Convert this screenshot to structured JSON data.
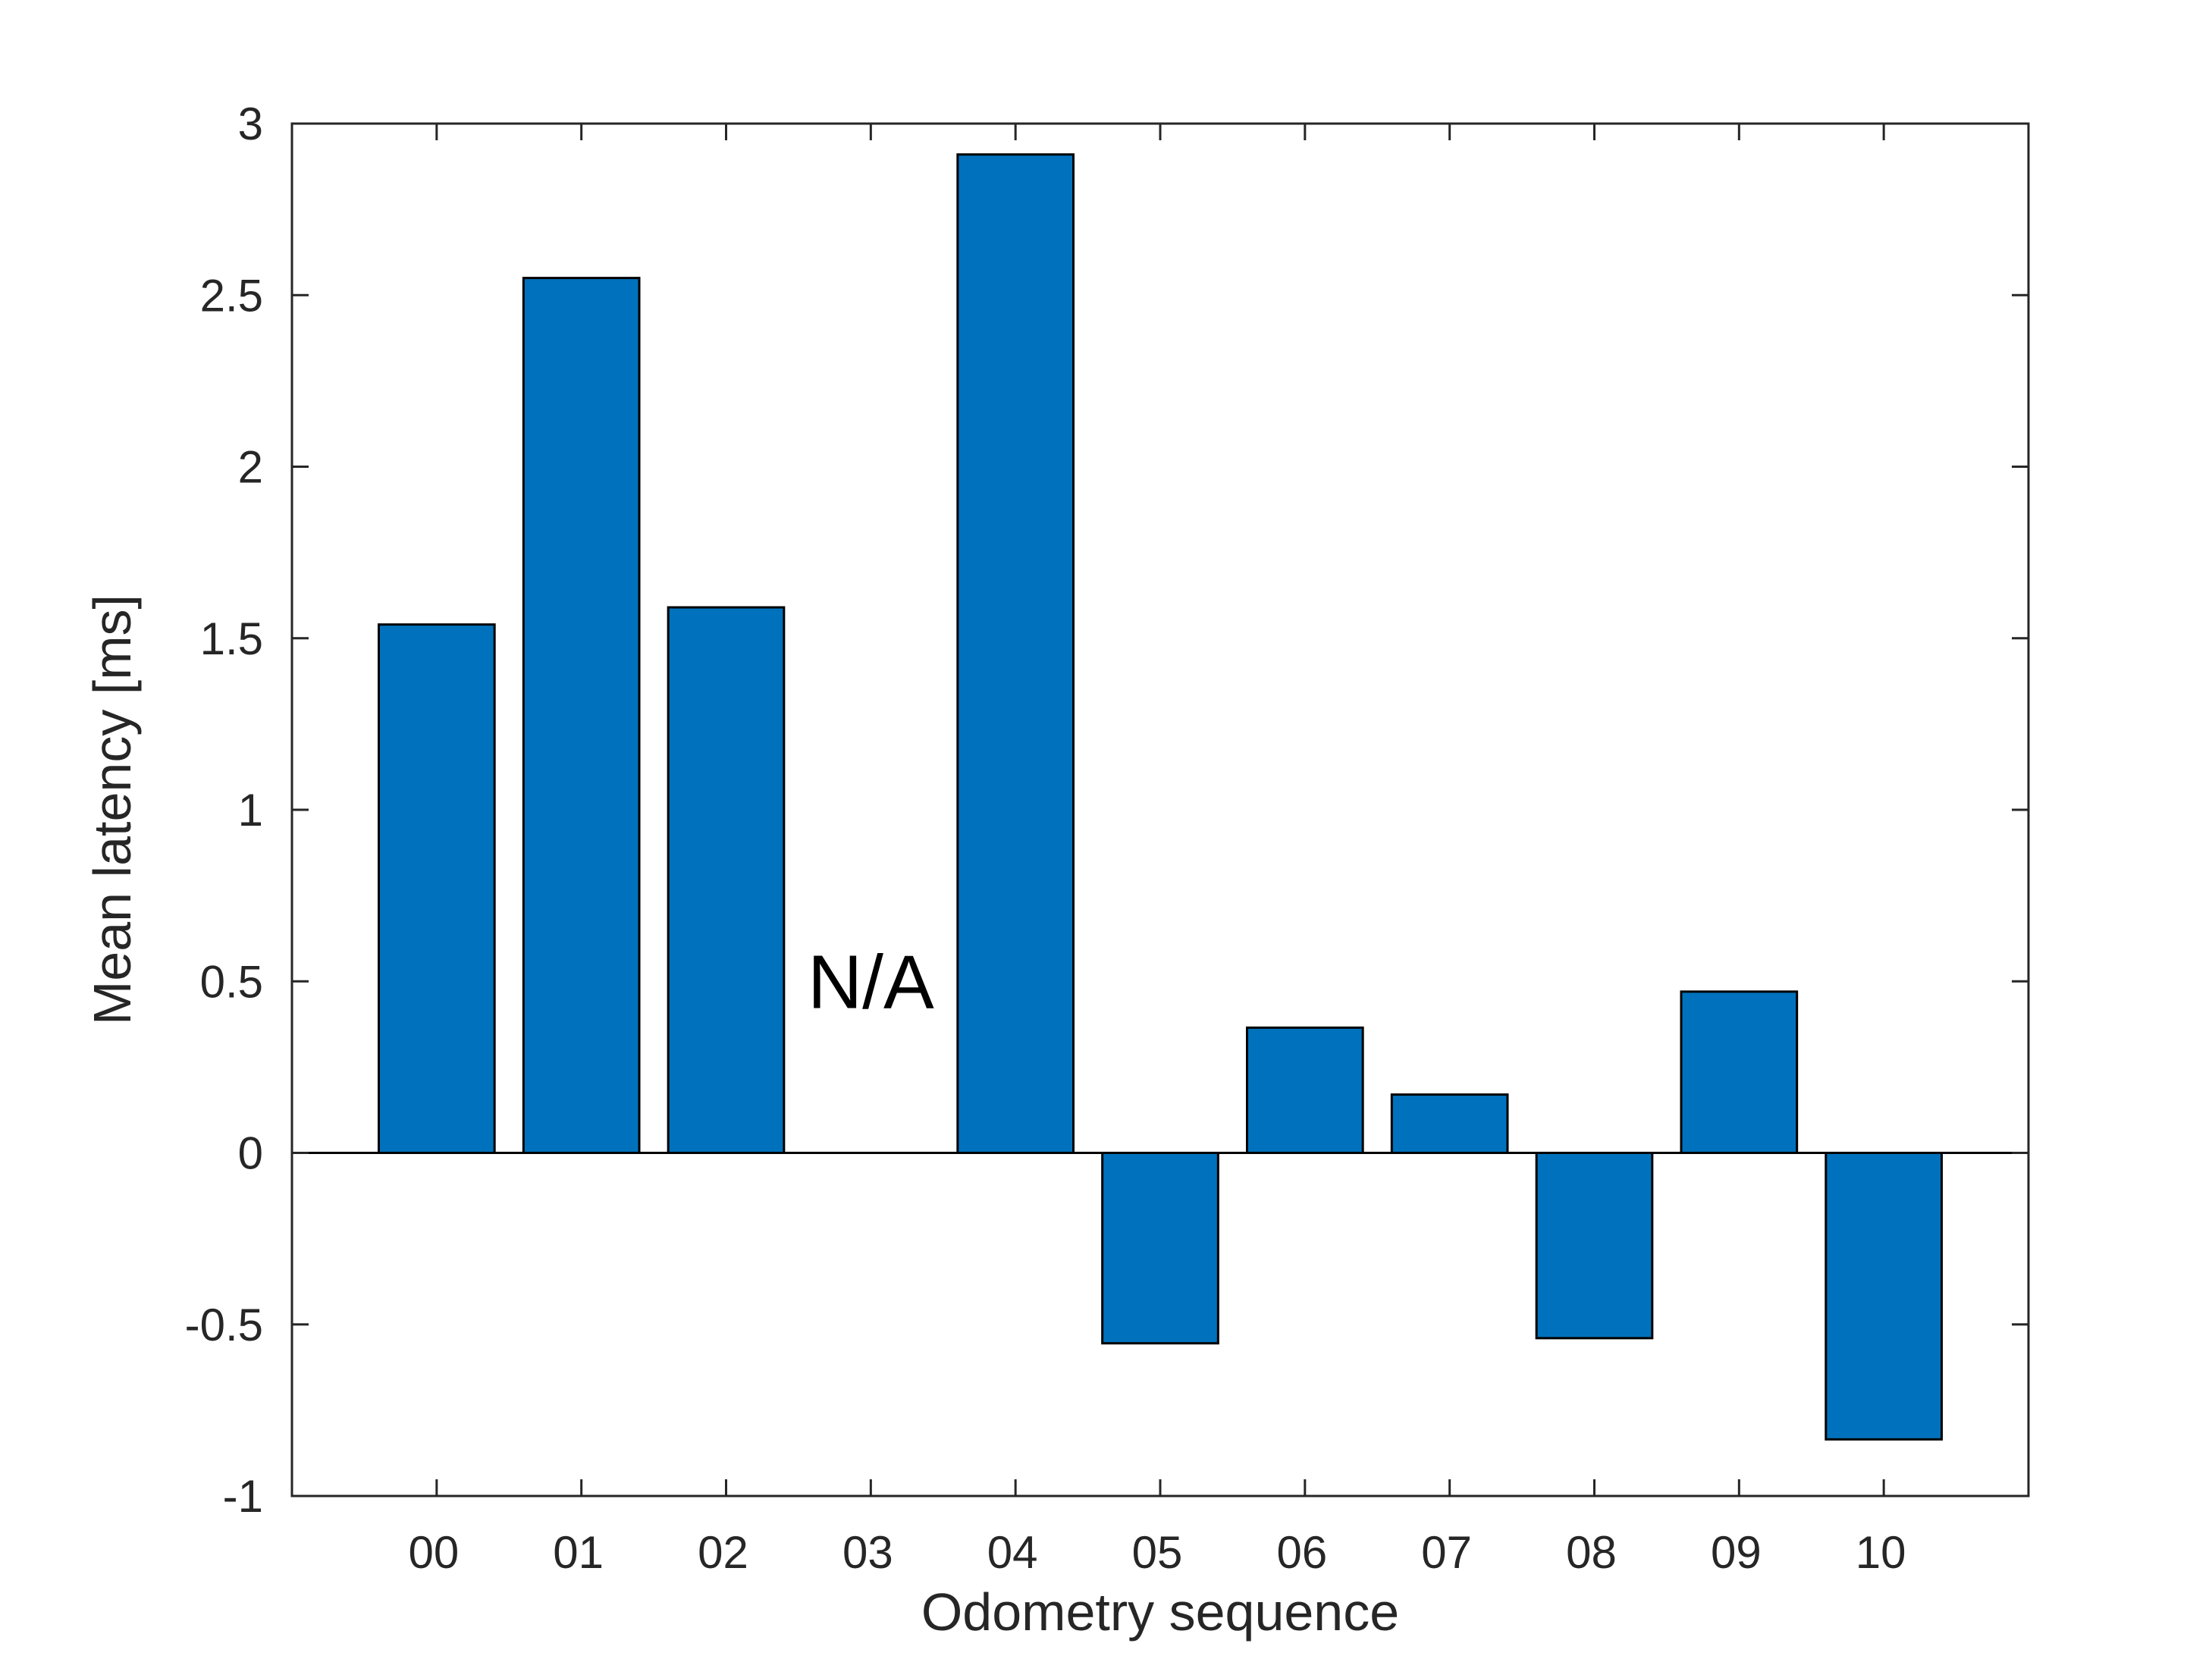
{
  "chart_data": {
    "type": "bar",
    "xlabel": "Odometry sequence",
    "ylabel": "Mean latency [ms]",
    "categories": [
      "00",
      "01",
      "02",
      "03",
      "04",
      "05",
      "06",
      "07",
      "08",
      "09",
      "10"
    ],
    "values": [
      1.54,
      2.55,
      1.59,
      0,
      2.91,
      -0.555,
      0.365,
      0.17,
      -0.54,
      0.47,
      -0.835
    ],
    "ylim": [
      -1,
      3
    ],
    "yticks": [
      -1,
      -0.5,
      0,
      0.5,
      1,
      1.5,
      2,
      2.5,
      3
    ],
    "ytick_labels": [
      "-1",
      "-0.5",
      "0",
      "0.5",
      "1",
      "1.5",
      "2",
      "2.5",
      "3"
    ],
    "annotations": [
      {
        "text": "N/A",
        "category": "03",
        "y": 0.5
      }
    ],
    "bar_color": "#0072BD",
    "grid": false,
    "legend": "none"
  }
}
